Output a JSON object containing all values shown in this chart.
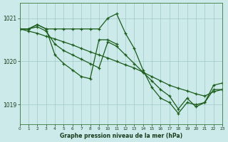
{
  "title": "Graphe pression niveau de la mer (hPa)",
  "bg_color": "#cceaea",
  "grid_color": "#a0c8c8",
  "line_color": "#1a5c1a",
  "xlim": [
    0,
    23
  ],
  "ylim": [
    1018.55,
    1021.35
  ],
  "yticks": [
    1019,
    1020,
    1021
  ],
  "xticks": [
    0,
    1,
    2,
    3,
    4,
    5,
    6,
    7,
    8,
    9,
    10,
    11,
    12,
    13,
    14,
    15,
    16,
    17,
    18,
    19,
    20,
    21,
    22,
    23
  ],
  "series": [
    {
      "x": [
        0,
        1,
        2,
        3,
        4,
        5,
        6,
        7,
        8,
        9,
        10,
        11,
        12,
        13,
        14,
        15,
        16,
        17,
        18,
        19,
        20,
        21,
        22,
        23
      ],
      "y": [
        1020.75,
        1020.75,
        1020.85,
        1020.75,
        1020.75,
        1020.75,
        1020.75,
        1020.75,
        1020.75,
        1020.75,
        1021.0,
        1021.1,
        1020.65,
        1020.3,
        1019.8,
        1019.4,
        1019.15,
        1019.05,
        1018.8,
        1019.05,
        1019.0,
        1019.05,
        1019.35,
        1019.35
      ]
    },
    {
      "x": [
        0,
        1,
        2,
        3,
        4,
        5,
        6,
        7,
        8,
        9,
        10,
        11
      ],
      "y": [
        1020.75,
        1020.75,
        1020.85,
        1020.75,
        1020.15,
        1019.95,
        1019.8,
        1019.65,
        1019.6,
        1020.5,
        1020.5,
        1020.4
      ]
    },
    {
      "x": [
        0,
        1,
        2,
        3,
        4,
        5,
        6,
        7,
        8,
        9,
        10,
        11,
        12,
        13,
        14,
        15,
        16,
        17,
        18,
        19,
        20,
        21,
        22,
        23
      ],
      "y": [
        1020.75,
        1020.75,
        1020.8,
        1020.7,
        1020.4,
        1020.25,
        1020.15,
        1020.05,
        1019.95,
        1019.85,
        1020.45,
        1020.35,
        1020.15,
        1019.95,
        1019.75,
        1019.55,
        1019.35,
        1019.2,
        1018.9,
        1019.15,
        1018.95,
        1019.05,
        1019.45,
        1019.5
      ]
    },
    {
      "x": [
        0,
        1,
        2,
        3,
        4,
        5,
        6,
        7,
        8,
        9,
        10,
        11,
        12,
        13,
        14,
        15,
        16,
        17,
        18,
        19,
        20,
        21,
        22,
        23
      ],
      "y": [
        1020.75,
        1020.7,
        1020.65,
        1020.58,
        1020.52,
        1020.45,
        1020.38,
        1020.3,
        1020.22,
        1020.15,
        1020.08,
        1020.0,
        1019.92,
        1019.85,
        1019.75,
        1019.65,
        1019.55,
        1019.45,
        1019.38,
        1019.32,
        1019.25,
        1019.2,
        1019.3,
        1019.35
      ]
    }
  ]
}
